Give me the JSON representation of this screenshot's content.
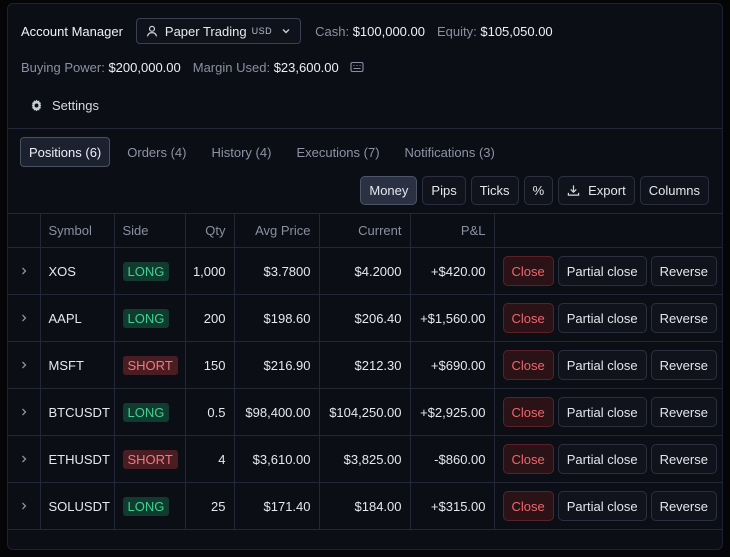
{
  "header": {
    "title": "Account Manager",
    "account": {
      "name": "Paper Trading",
      "currency": "USD"
    },
    "cash": {
      "label": "Cash:",
      "value": "$100,000.00"
    },
    "equity": {
      "label": "Equity:",
      "value": "$105,050.00"
    },
    "buying_power": {
      "label": "Buying Power:",
      "value": "$200,000.00"
    },
    "margin_used": {
      "label": "Margin Used:",
      "value": "$23,600.00"
    },
    "settings_label": "Settings"
  },
  "tabs": [
    {
      "label": "Positions (6)",
      "active": true
    },
    {
      "label": "Orders (4)",
      "active": false
    },
    {
      "label": "History (4)",
      "active": false
    },
    {
      "label": "Executions (7)",
      "active": false
    },
    {
      "label": "Notifications (3)",
      "active": false
    }
  ],
  "toolbar": {
    "money": "Money",
    "pips": "Pips",
    "ticks": "Ticks",
    "percent": "%",
    "export": "Export",
    "columns": "Columns",
    "active_mode": "Money"
  },
  "table": {
    "columns": [
      "Symbol",
      "Side",
      "Qty",
      "Avg Price",
      "Current",
      "P&L"
    ],
    "actions": {
      "close": "Close",
      "partial_close": "Partial close",
      "reverse": "Reverse"
    },
    "rows": [
      {
        "symbol": "XOS",
        "side": "LONG",
        "qty": "1,000",
        "avg_price": "$3.7800",
        "current": "$4.2000",
        "pnl": "+$420.00"
      },
      {
        "symbol": "AAPL",
        "side": "LONG",
        "qty": "200",
        "avg_price": "$198.60",
        "current": "$206.40",
        "pnl": "+$1,560.00"
      },
      {
        "symbol": "MSFT",
        "side": "SHORT",
        "qty": "150",
        "avg_price": "$216.90",
        "current": "$212.30",
        "pnl": "+$690.00"
      },
      {
        "symbol": "BTCUSDT",
        "side": "LONG",
        "qty": "0.5",
        "avg_price": "$98,400.00",
        "current": "$104,250.00",
        "pnl": "+$2,925.00"
      },
      {
        "symbol": "ETHUSDT",
        "side": "SHORT",
        "qty": "4",
        "avg_price": "$3,610.00",
        "current": "$3,825.00",
        "pnl": "-$860.00"
      },
      {
        "symbol": "SOLUSDT",
        "side": "LONG",
        "qty": "25",
        "avg_price": "$171.40",
        "current": "$184.00",
        "pnl": "+$315.00"
      }
    ]
  },
  "colors": {
    "background": "#0c0e16",
    "long": "#3ed392",
    "short": "#f07a80",
    "profit": "#3ecf8e",
    "loss": "#f26b73"
  }
}
